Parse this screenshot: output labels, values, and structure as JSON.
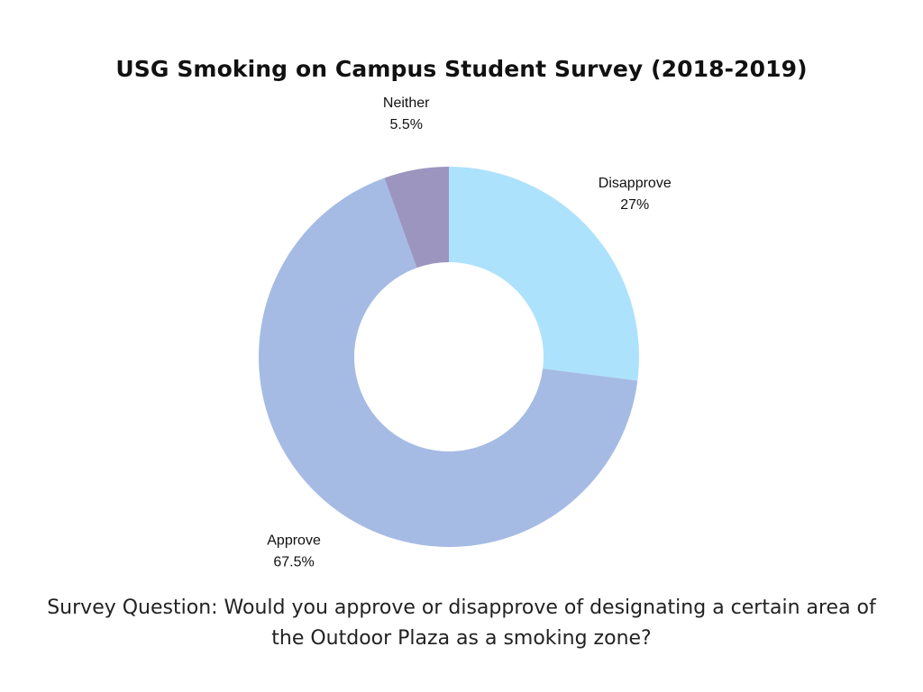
{
  "chart_data": {
    "type": "pie",
    "title": "USG Smoking on Campus Student Survey (2018-2019)",
    "donut": true,
    "start_angle_deg": 0,
    "direction": "clockwise",
    "slices": [
      {
        "label": "Disapprove",
        "value": 27,
        "value_label": "27%",
        "color": "#ade2fd"
      },
      {
        "label": "Approve",
        "value": 67.5,
        "value_label": "67.5%",
        "color": "#a5bbe4"
      },
      {
        "label": "Neither",
        "value": 5.5,
        "value_label": "5.5%",
        "color": "#9b95c0"
      }
    ]
  },
  "footer": {
    "question": "Survey Question:  Would you approve or disapprove of designating a certain area of the Outdoor Plaza as a smoking zone?"
  }
}
